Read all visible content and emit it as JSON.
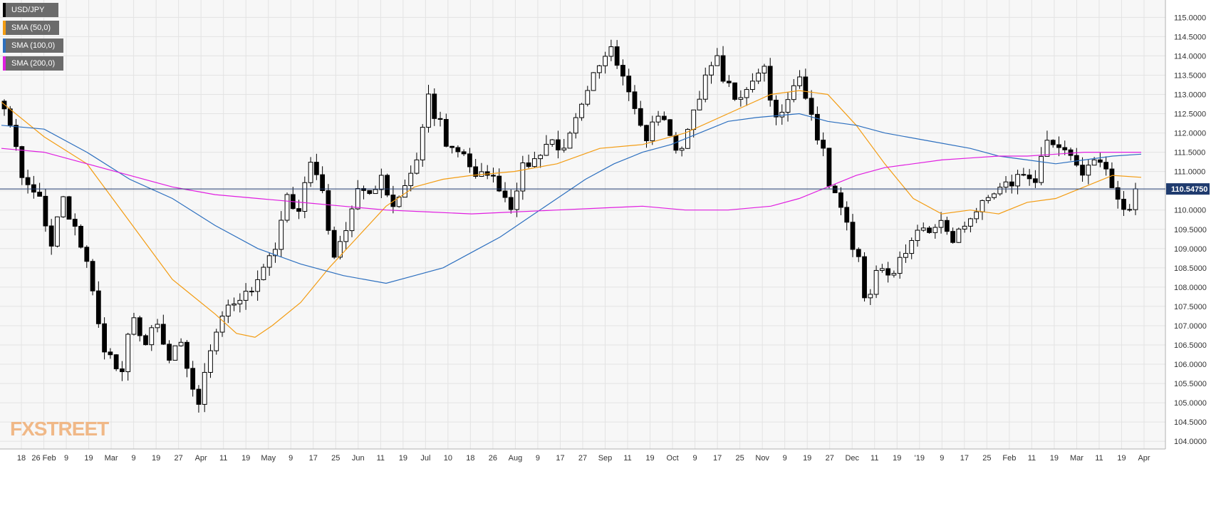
{
  "legend": [
    {
      "label": "USD/JPY",
      "color": "#000000"
    },
    {
      "label": "SMA (50,0)",
      "color": "#f39c12"
    },
    {
      "label": "SMA (100,0)",
      "color": "#2c6fbf"
    },
    {
      "label": "SMA (200,0)",
      "color": "#e01ee0"
    }
  ],
  "watermark": "FXSTREET",
  "price_tag": "110.54750",
  "colors": {
    "background": "#f7f7f7",
    "grid": "#e3e3e3",
    "up_candle": "#ffffff",
    "down_candle": "#000000",
    "price_line": "#1f3b6e",
    "price_tag_bg": "#1f3b6e"
  },
  "chart_data": {
    "type": "candlestick",
    "title": "",
    "instrument": "USD/JPY",
    "timeframe": "daily",
    "ylim": [
      103.8,
      115.45
    ],
    "y_ticks": [
      "115.0000",
      "114.5000",
      "114.0000",
      "113.5000",
      "113.0000",
      "112.5000",
      "112.0000",
      "111.5000",
      "111.0000",
      "110.5000",
      "110.0000",
      "109.5000",
      "109.0000",
      "108.5000",
      "108.0000",
      "107.5000",
      "107.0000",
      "106.5000",
      "106.0000",
      "105.5000",
      "105.0000",
      "104.5000",
      "104.0000"
    ],
    "x_ticks": [
      "18",
      "26 Feb",
      "9",
      "19",
      "Mar",
      "9",
      "19",
      "27",
      "Apr",
      "11",
      "19",
      "May",
      "9",
      "17",
      "25",
      "Jun",
      "11",
      "19",
      "Jul",
      "10",
      "18",
      "26",
      "Aug",
      "9",
      "17",
      "27",
      "Sep",
      "11",
      "19",
      "Oct",
      "9",
      "17",
      "25",
      "Nov",
      "9",
      "19",
      "27",
      "Dec",
      "11",
      "19",
      "'19",
      "9",
      "17",
      "25",
      "Feb",
      "11",
      "19",
      "Mar",
      "11",
      "19",
      "Apr"
    ],
    "last_price": 110.5475,
    "series": [
      {
        "name": "USD/JPY",
        "waypoints": [
          [
            0,
            112.75
          ],
          [
            8,
            111.7
          ],
          [
            15,
            110.6
          ],
          [
            22,
            110.4
          ],
          [
            30,
            109.0
          ],
          [
            38,
            110.3
          ],
          [
            45,
            109.5
          ],
          [
            55,
            108.7
          ],
          [
            65,
            107.0
          ],
          [
            72,
            106.2
          ],
          [
            80,
            105.7
          ],
          [
            88,
            107.3
          ],
          [
            96,
            106.4
          ],
          [
            102,
            107.0
          ],
          [
            112,
            106.0
          ],
          [
            120,
            106.6
          ],
          [
            132,
            105.0
          ],
          [
            140,
            106.4
          ],
          [
            150,
            107.3
          ],
          [
            162,
            107.6
          ],
          [
            172,
            108.0
          ],
          [
            182,
            108.5
          ],
          [
            190,
            109.0
          ],
          [
            198,
            110.3
          ],
          [
            208,
            110.0
          ],
          [
            216,
            111.2
          ],
          [
            225,
            110.5
          ],
          [
            234,
            108.8
          ],
          [
            242,
            109.5
          ],
          [
            252,
            110.6
          ],
          [
            262,
            110.4
          ],
          [
            272,
            110.8
          ],
          [
            282,
            110.0
          ],
          [
            292,
            110.6
          ],
          [
            302,
            111.3
          ],
          [
            312,
            112.9
          ],
          [
            318,
            112.3
          ],
          [
            324,
            111.6
          ],
          [
            334,
            111.5
          ],
          [
            344,
            110.8
          ],
          [
            354,
            111.0
          ],
          [
            364,
            110.6
          ],
          [
            374,
            110.1
          ],
          [
            384,
            111.1
          ],
          [
            394,
            111.3
          ],
          [
            406,
            111.8
          ],
          [
            416,
            111.5
          ],
          [
            426,
            112.3
          ],
          [
            436,
            113.0
          ],
          [
            444,
            113.8
          ],
          [
            452,
            114.3
          ],
          [
            460,
            113.6
          ],
          [
            468,
            112.7
          ],
          [
            476,
            111.8
          ],
          [
            484,
            112.5
          ],
          [
            494,
            112.0
          ],
          [
            500,
            111.5
          ],
          [
            508,
            112.6
          ],
          [
            518,
            113.4
          ],
          [
            526,
            113.9
          ],
          [
            534,
            113.2
          ],
          [
            542,
            112.8
          ],
          [
            550,
            113.3
          ],
          [
            558,
            113.8
          ],
          [
            566,
            112.4
          ],
          [
            574,
            112.8
          ],
          [
            582,
            113.4
          ],
          [
            590,
            112.6
          ],
          [
            598,
            111.5
          ],
          [
            605,
            110.4
          ],
          [
            612,
            109.8
          ],
          [
            618,
            108.7
          ],
          [
            621,
            107.6
          ],
          [
            626,
            107.7
          ],
          [
            632,
            108.5
          ],
          [
            640,
            108.3
          ],
          [
            648,
            108.9
          ],
          [
            656,
            109.5
          ],
          [
            664,
            109.4
          ],
          [
            672,
            109.7
          ],
          [
            680,
            109.2
          ],
          [
            688,
            109.6
          ],
          [
            696,
            110.0
          ],
          [
            704,
            110.2
          ],
          [
            712,
            110.5
          ],
          [
            720,
            110.7
          ],
          [
            728,
            111.0
          ],
          [
            736,
            110.7
          ],
          [
            744,
            111.7
          ],
          [
            752,
            111.7
          ],
          [
            760,
            111.5
          ],
          [
            768,
            110.9
          ],
          [
            776,
            111.3
          ],
          [
            784,
            111.1
          ],
          [
            790,
            110.4
          ],
          [
            796,
            110.0
          ],
          [
            800,
            110.55
          ]
        ]
      },
      {
        "name": "SMA (50,0)",
        "color": "#f39c12",
        "points": [
          [
            0,
            112.8
          ],
          [
            30,
            111.9
          ],
          [
            60,
            111.2
          ],
          [
            90,
            109.7
          ],
          [
            120,
            108.2
          ],
          [
            150,
            107.3
          ],
          [
            165,
            106.8
          ],
          [
            178,
            106.7
          ],
          [
            190,
            107.0
          ],
          [
            210,
            107.6
          ],
          [
            230,
            108.5
          ],
          [
            250,
            109.3
          ],
          [
            270,
            110.1
          ],
          [
            290,
            110.6
          ],
          [
            310,
            110.8
          ],
          [
            330,
            110.9
          ],
          [
            360,
            111.0
          ],
          [
            390,
            111.2
          ],
          [
            420,
            111.6
          ],
          [
            450,
            111.7
          ],
          [
            480,
            112.0
          ],
          [
            510,
            112.5
          ],
          [
            540,
            113.0
          ],
          [
            560,
            113.1
          ],
          [
            580,
            113.0
          ],
          [
            600,
            112.2
          ],
          [
            620,
            111.2
          ],
          [
            640,
            110.3
          ],
          [
            660,
            109.9
          ],
          [
            680,
            110.0
          ],
          [
            700,
            109.9
          ],
          [
            720,
            110.2
          ],
          [
            740,
            110.3
          ],
          [
            760,
            110.6
          ],
          [
            780,
            110.9
          ],
          [
            800,
            110.85
          ]
        ]
      },
      {
        "name": "SMA (100,0)",
        "color": "#2c6fbf",
        "points": [
          [
            0,
            112.2
          ],
          [
            30,
            112.1
          ],
          [
            60,
            111.5
          ],
          [
            90,
            110.8
          ],
          [
            120,
            110.3
          ],
          [
            150,
            109.6
          ],
          [
            180,
            109.0
          ],
          [
            210,
            108.6
          ],
          [
            240,
            108.3
          ],
          [
            270,
            108.1
          ],
          [
            290,
            108.3
          ],
          [
            310,
            108.5
          ],
          [
            330,
            108.9
          ],
          [
            350,
            109.3
          ],
          [
            370,
            109.8
          ],
          [
            390,
            110.3
          ],
          [
            410,
            110.8
          ],
          [
            430,
            111.2
          ],
          [
            450,
            111.5
          ],
          [
            470,
            111.7
          ],
          [
            490,
            112.0
          ],
          [
            510,
            112.3
          ],
          [
            530,
            112.4
          ],
          [
            560,
            112.5
          ],
          [
            580,
            112.3
          ],
          [
            600,
            112.2
          ],
          [
            620,
            112.0
          ],
          [
            650,
            111.8
          ],
          [
            680,
            111.6
          ],
          [
            700,
            111.4
          ],
          [
            720,
            111.3
          ],
          [
            740,
            111.2
          ],
          [
            760,
            111.3
          ],
          [
            780,
            111.4
          ],
          [
            800,
            111.45
          ]
        ]
      },
      {
        "name": "SMA (200,0)",
        "color": "#e01ee0",
        "points": [
          [
            0,
            111.6
          ],
          [
            30,
            111.5
          ],
          [
            60,
            111.2
          ],
          [
            90,
            110.9
          ],
          [
            120,
            110.6
          ],
          [
            150,
            110.4
          ],
          [
            180,
            110.3
          ],
          [
            210,
            110.2
          ],
          [
            240,
            110.1
          ],
          [
            270,
            110.0
          ],
          [
            300,
            109.95
          ],
          [
            330,
            109.9
          ],
          [
            360,
            109.95
          ],
          [
            390,
            110.0
          ],
          [
            420,
            110.05
          ],
          [
            450,
            110.1
          ],
          [
            480,
            110.0
          ],
          [
            510,
            110.0
          ],
          [
            540,
            110.1
          ],
          [
            560,
            110.3
          ],
          [
            580,
            110.6
          ],
          [
            600,
            110.9
          ],
          [
            620,
            111.1
          ],
          [
            640,
            111.2
          ],
          [
            660,
            111.3
          ],
          [
            680,
            111.35
          ],
          [
            700,
            111.4
          ],
          [
            720,
            111.4
          ],
          [
            740,
            111.45
          ],
          [
            760,
            111.5
          ],
          [
            780,
            111.5
          ],
          [
            800,
            111.5
          ]
        ]
      }
    ]
  }
}
